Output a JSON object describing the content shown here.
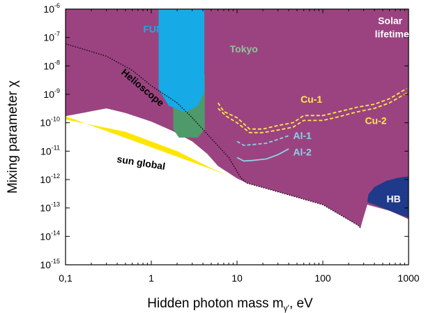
{
  "chart_data": {
    "type": "area",
    "title": "",
    "xlabel": "Hidden photon mass m",
    "xlabel_subscript": "γ'",
    "xlabel_unit": ", eV",
    "ylabel": "Mixing parameter χ",
    "x_scale": "log",
    "y_scale": "log",
    "xlim": [
      0.1,
      1000
    ],
    "ylim": [
      1e-15,
      1e-06
    ],
    "x_ticks": [
      {
        "value": 0.1,
        "label": "0,1"
      },
      {
        "value": 1,
        "label": "1"
      },
      {
        "value": 10,
        "label": "10"
      },
      {
        "value": 100,
        "label": "100"
      },
      {
        "value": 1000,
        "label": "1000"
      }
    ],
    "y_ticks": [
      {
        "value": 1e-06,
        "base": "10",
        "exp": "-6"
      },
      {
        "value": 1e-07,
        "base": "10",
        "exp": "-7"
      },
      {
        "value": 1e-08,
        "base": "10",
        "exp": "-8"
      },
      {
        "value": 1e-09,
        "base": "10",
        "exp": "-9"
      },
      {
        "value": 1e-10,
        "base": "10",
        "exp": "-10"
      },
      {
        "value": 1e-11,
        "base": "10",
        "exp": "-11"
      },
      {
        "value": 1e-12,
        "base": "10",
        "exp": "-12"
      },
      {
        "value": 1e-13,
        "base": "10",
        "exp": "-13"
      },
      {
        "value": 1e-14,
        "base": "10",
        "exp": "-14"
      },
      {
        "value": 1e-15,
        "base": "10",
        "exp": "-15"
      }
    ],
    "colors": {
      "solar": "#9b4380",
      "sun_global": "#ffe600",
      "funk": "#16aae6",
      "tokyo": "#4e9a6a",
      "hb": "#1f3a8a",
      "cu": "#ffe84a",
      "al": "#8fd0e6",
      "text_light": "#ffffff",
      "text_dark": "#000000"
    },
    "regions": [
      {
        "name": "Solar lifetime",
        "color": "solar",
        "points": [
          [
            0.1,
            1e-06
          ],
          [
            1000,
            1e-06
          ],
          [
            1000,
            4e-14
          ],
          [
            600,
            8e-14
          ],
          [
            330,
            1.3e-13
          ],
          [
            300,
            5e-14
          ],
          [
            275,
            2e-14
          ],
          [
            255,
            2.5e-14
          ],
          [
            100,
            1.3e-13
          ],
          [
            30,
            3.7e-13
          ],
          [
            13,
            7.5e-13
          ],
          [
            10,
            1.1e-12
          ],
          [
            6,
            3e-12
          ],
          [
            4.5,
            8e-12
          ],
          [
            3,
            2.2e-11
          ],
          [
            1.8,
            5e-11
          ],
          [
            1,
            1.1e-10
          ],
          [
            0.5,
            2.2e-10
          ],
          [
            0.3,
            3.2e-10
          ],
          [
            0.1,
            1.7e-10
          ]
        ]
      },
      {
        "name": "sun global",
        "color": "sun_global",
        "points": [
          [
            0.1,
            1.7e-10
          ],
          [
            8,
            1.4e-12
          ],
          [
            5,
            2.5e-12
          ],
          [
            2,
            1e-11
          ],
          [
            0.5,
            4.8e-11
          ],
          [
            0.1,
            1.3e-10
          ]
        ]
      },
      {
        "name": "HB",
        "color": "hb",
        "points": [
          [
            340,
            3e-13
          ],
          [
            400,
            5.5e-13
          ],
          [
            550,
            9e-13
          ],
          [
            750,
            1.15e-12
          ],
          [
            1000,
            1.3e-12
          ],
          [
            1000,
            4.5e-14
          ],
          [
            600,
            8e-14
          ],
          [
            400,
            1.3e-13
          ],
          [
            330,
            1.6e-13
          ]
        ]
      },
      {
        "name": "Tokyo",
        "color": "tokyo",
        "points": [
          [
            1.8,
            2e-09
          ],
          [
            1.8,
            6e-11
          ],
          [
            2.1,
            3e-11
          ],
          [
            3.5,
            3e-11
          ],
          [
            4.2,
            6e-11
          ],
          [
            4.2,
            5e-09
          ]
        ]
      },
      {
        "name": "FUNK-1",
        "color": "funk",
        "points": [
          [
            1.22,
            1e-06
          ],
          [
            4.15,
            1e-06
          ],
          [
            4.15,
            1.2e-09
          ],
          [
            3.5,
            4e-10
          ],
          [
            2.5,
            2.3e-10
          ],
          [
            1.6,
            4e-10
          ],
          [
            1.22,
            1.5e-09
          ]
        ]
      }
    ],
    "lines": [
      {
        "name": "Helioscope",
        "style": "dotted",
        "color": "#000000",
        "points": [
          [
            0.1,
            6e-08
          ],
          [
            0.3,
            2.2e-08
          ],
          [
            0.6,
            7e-09
          ],
          [
            1,
            2e-09
          ],
          [
            2,
            5e-10
          ],
          [
            3,
            1.5e-10
          ],
          [
            5,
            2.8e-11
          ],
          [
            8,
            6e-12
          ],
          [
            11,
            1.2e-12
          ],
          [
            13,
            7.5e-13
          ],
          [
            30,
            3.7e-13
          ],
          [
            100,
            1.3e-13
          ],
          [
            255,
            2.5e-14
          ],
          [
            275,
            2e-14
          ]
        ]
      },
      {
        "name": "Cu-1",
        "style": "dashed",
        "color": "cu",
        "points": [
          [
            6,
            5e-10
          ],
          [
            7,
            2.5e-10
          ],
          [
            10,
            1.5e-10
          ],
          [
            14,
            6e-11
          ],
          [
            20,
            6e-11
          ],
          [
            30,
            8e-11
          ],
          [
            45,
            1e-10
          ],
          [
            60,
            1.8e-10
          ],
          [
            100,
            1.8e-10
          ],
          [
            150,
            2.4e-10
          ],
          [
            250,
            3.5e-10
          ],
          [
            400,
            4.5e-10
          ],
          [
            600,
            7e-10
          ],
          [
            950,
            1.6e-09
          ]
        ]
      },
      {
        "name": "Cu-2",
        "style": "dashed",
        "color": "cu",
        "points": [
          [
            6,
            3.2e-10
          ],
          [
            7.5,
            1.7e-10
          ],
          [
            10,
            1e-10
          ],
          [
            14,
            4.5e-11
          ],
          [
            20,
            4.5e-11
          ],
          [
            30,
            5.5e-11
          ],
          [
            45,
            7e-11
          ],
          [
            60,
            1.2e-10
          ],
          [
            100,
            1.2e-10
          ],
          [
            150,
            1.6e-10
          ],
          [
            250,
            2.4e-10
          ],
          [
            400,
            3.2e-10
          ],
          [
            600,
            5e-10
          ],
          [
            950,
            1.1e-09
          ]
        ]
      },
      {
        "name": "Al-1",
        "style": "dashed",
        "color": "al",
        "points": [
          [
            10,
            2.2e-11
          ],
          [
            12,
            1.6e-11
          ],
          [
            15,
            1.7e-11
          ],
          [
            22,
            1.9e-11
          ],
          [
            30,
            2.6e-11
          ],
          [
            40,
            3.5e-11
          ]
        ]
      },
      {
        "name": "Al-2",
        "style": "solid",
        "color": "al",
        "points": [
          [
            10,
            6e-12
          ],
          [
            12,
            4.5e-12
          ],
          [
            15,
            4.7e-12
          ],
          [
            22,
            5.3e-12
          ],
          [
            30,
            7.5e-12
          ],
          [
            40,
            1.2e-11
          ]
        ]
      }
    ],
    "labels": [
      {
        "text": "FUNK-1",
        "x": 1.3,
        "y": 1.5e-07,
        "color": "funk",
        "anchor": "middle"
      },
      {
        "text": "Tokyo",
        "x": 12,
        "y": 3e-08,
        "color": "#8fc49a",
        "anchor": "middle"
      },
      {
        "text": "Solar",
        "x": 610,
        "y": 3e-07,
        "color": "text_light",
        "anchor": "middle"
      },
      {
        "text": "lifetime",
        "x": 640,
        "y": 1e-07,
        "color": "text_light",
        "anchor": "middle"
      },
      {
        "text": "Cu-1",
        "x": 55,
        "y": 5e-10,
        "color": "cu",
        "anchor": "start"
      },
      {
        "text": "Cu-2",
        "x": 310,
        "y": 9e-11,
        "color": "cu",
        "anchor": "start"
      },
      {
        "text": "Al-1",
        "x": 45,
        "y": 2.7e-11,
        "color": "al",
        "anchor": "start"
      },
      {
        "text": "Al-2",
        "x": 45,
        "y": 7e-12,
        "color": "al",
        "anchor": "start"
      },
      {
        "text": "HB",
        "x": 670,
        "y": 1.6e-13,
        "color": "text_light",
        "anchor": "middle"
      },
      {
        "text": "sun global",
        "x": 0.75,
        "y": 3e-12,
        "color": "text_dark",
        "anchor": "middle",
        "rotate": 9
      },
      {
        "text": "Helioscope",
        "x": 0.75,
        "y": 1.4e-09,
        "color": "text_dark",
        "anchor": "middle",
        "rotate": 40,
        "size": 11
      }
    ]
  }
}
